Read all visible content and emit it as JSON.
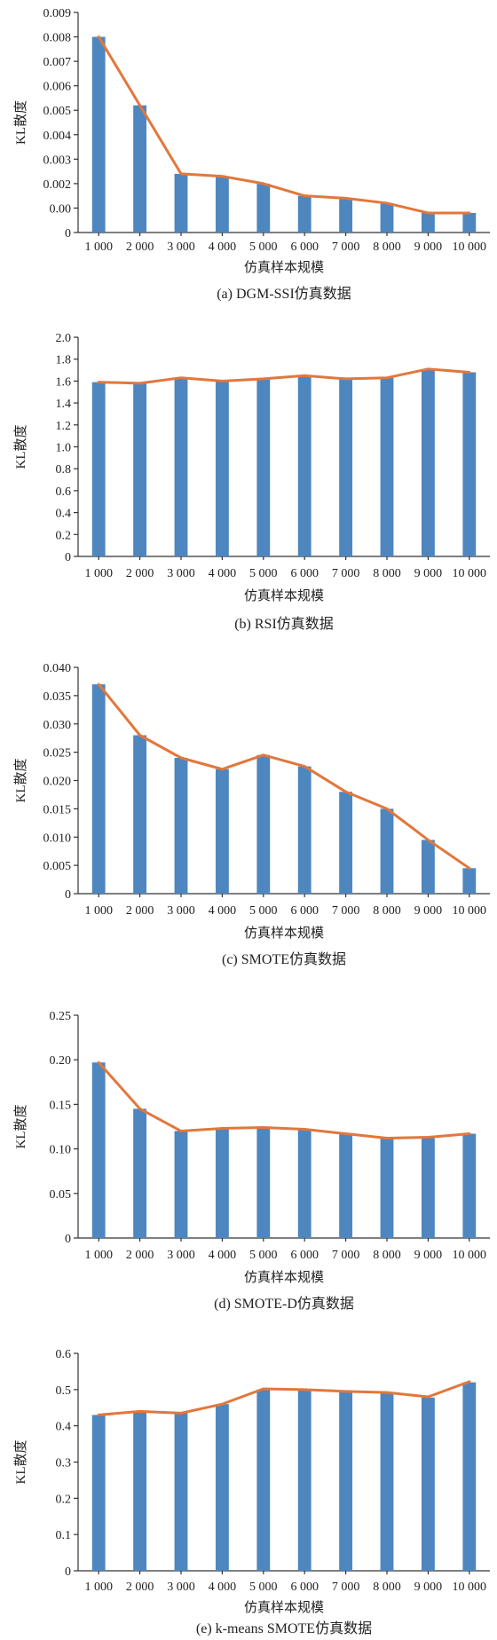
{
  "style": {
    "bar_color": "#4e86bf",
    "line_color": "#e2773c"
  },
  "chart_data": [
    {
      "type": "bar",
      "caption": "(a) DGM-SSI仿真数据",
      "xlabel": "仿真样本规模",
      "ylabel": "KL散度",
      "categories": [
        "1 000",
        "2 000",
        "3 000",
        "4 000",
        "5 000",
        "6 000",
        "7 000",
        "8 000",
        "9 000",
        "10 000"
      ],
      "values": [
        0.008,
        0.0052,
        0.0024,
        0.0023,
        0.002,
        0.0015,
        0.0014,
        0.0012,
        0.0008,
        0.0008
      ],
      "line_values": [
        0.008,
        0.0052,
        0.0024,
        0.0023,
        0.002,
        0.0015,
        0.0014,
        0.0012,
        0.0008,
        0.0008
      ],
      "ylim": [
        0,
        0.009
      ],
      "yticks": [
        "0",
        "0.00",
        "0.002",
        "0.003",
        "0.004",
        "0.005",
        "0.006",
        "0.007",
        "0.008",
        "0.009"
      ],
      "grid": false
    },
    {
      "type": "bar",
      "caption": "(b) RSI仿真数据",
      "xlabel": "仿真样本规模",
      "ylabel": "KL散度",
      "categories": [
        "1 000",
        "2 000",
        "3 000",
        "4 000",
        "5 000",
        "6 000",
        "7 000",
        "8 000",
        "9 000",
        "10 000"
      ],
      "values": [
        1.59,
        1.58,
        1.62,
        1.6,
        1.62,
        1.65,
        1.62,
        1.63,
        1.7,
        1.68
      ],
      "line_values": [
        1.59,
        1.58,
        1.63,
        1.6,
        1.62,
        1.65,
        1.62,
        1.63,
        1.71,
        1.68
      ],
      "ylim": [
        0,
        2.0
      ],
      "yticks": [
        "0",
        "0.2",
        "0.4",
        "0.6",
        "0.8",
        "1.0",
        "1.2",
        "1.4",
        "1.6",
        "1.8",
        "2.0"
      ],
      "grid": false
    },
    {
      "type": "bar",
      "caption": "(c) SMOTE仿真数据",
      "xlabel": "仿真样本规模",
      "ylabel": "KL散度",
      "categories": [
        "1 000",
        "2 000",
        "3 000",
        "4 000",
        "5 000",
        "6 000",
        "7 000",
        "8 000",
        "9 000",
        "10 000"
      ],
      "values": [
        0.037,
        0.028,
        0.024,
        0.022,
        0.0245,
        0.0225,
        0.018,
        0.015,
        0.0095,
        0.0045
      ],
      "line_values": [
        0.037,
        0.028,
        0.024,
        0.022,
        0.0245,
        0.0225,
        0.018,
        0.015,
        0.0095,
        0.0045
      ],
      "ylim": [
        0,
        0.04
      ],
      "yticks": [
        "0",
        "0.005",
        "0.010",
        "0.015",
        "0.020",
        "0.025",
        "0.030",
        "0.035",
        "0.040"
      ],
      "grid": false
    },
    {
      "type": "bar",
      "caption": "(d) SMOTE-D仿真数据",
      "xlabel": "仿真样本规模",
      "ylabel": "KL散度",
      "categories": [
        "1 000",
        "2 000",
        "3 000",
        "4 000",
        "5 000",
        "6 000",
        "7 000",
        "8 000",
        "9 000",
        "10 000"
      ],
      "values": [
        0.197,
        0.145,
        0.12,
        0.122,
        0.124,
        0.122,
        0.117,
        0.112,
        0.113,
        0.117
      ],
      "line_values": [
        0.197,
        0.145,
        0.12,
        0.123,
        0.124,
        0.122,
        0.117,
        0.112,
        0.113,
        0.117
      ],
      "ylim": [
        0,
        0.25
      ],
      "yticks": [
        "0",
        "0.05",
        "0.10",
        "0.15",
        "0.20",
        "0.25"
      ],
      "grid": false
    },
    {
      "type": "bar",
      "caption": "(e) k-means SMOTE仿真数据",
      "xlabel": "仿真样本规模",
      "ylabel": "KL散度",
      "categories": [
        "1 000",
        "2 000",
        "3 000",
        "4 000",
        "5 000",
        "6 000",
        "7 000",
        "8 000",
        "9 000",
        "10 000"
      ],
      "values": [
        0.43,
        0.437,
        0.435,
        0.46,
        0.5,
        0.498,
        0.493,
        0.49,
        0.478,
        0.52
      ],
      "line_values": [
        0.43,
        0.44,
        0.435,
        0.46,
        0.502,
        0.5,
        0.495,
        0.492,
        0.48,
        0.522
      ],
      "ylim": [
        0,
        0.6
      ],
      "yticks": [
        "0",
        "0.1",
        "0.2",
        "0.3",
        "0.4",
        "0.5",
        "0.6"
      ],
      "grid": false
    }
  ]
}
